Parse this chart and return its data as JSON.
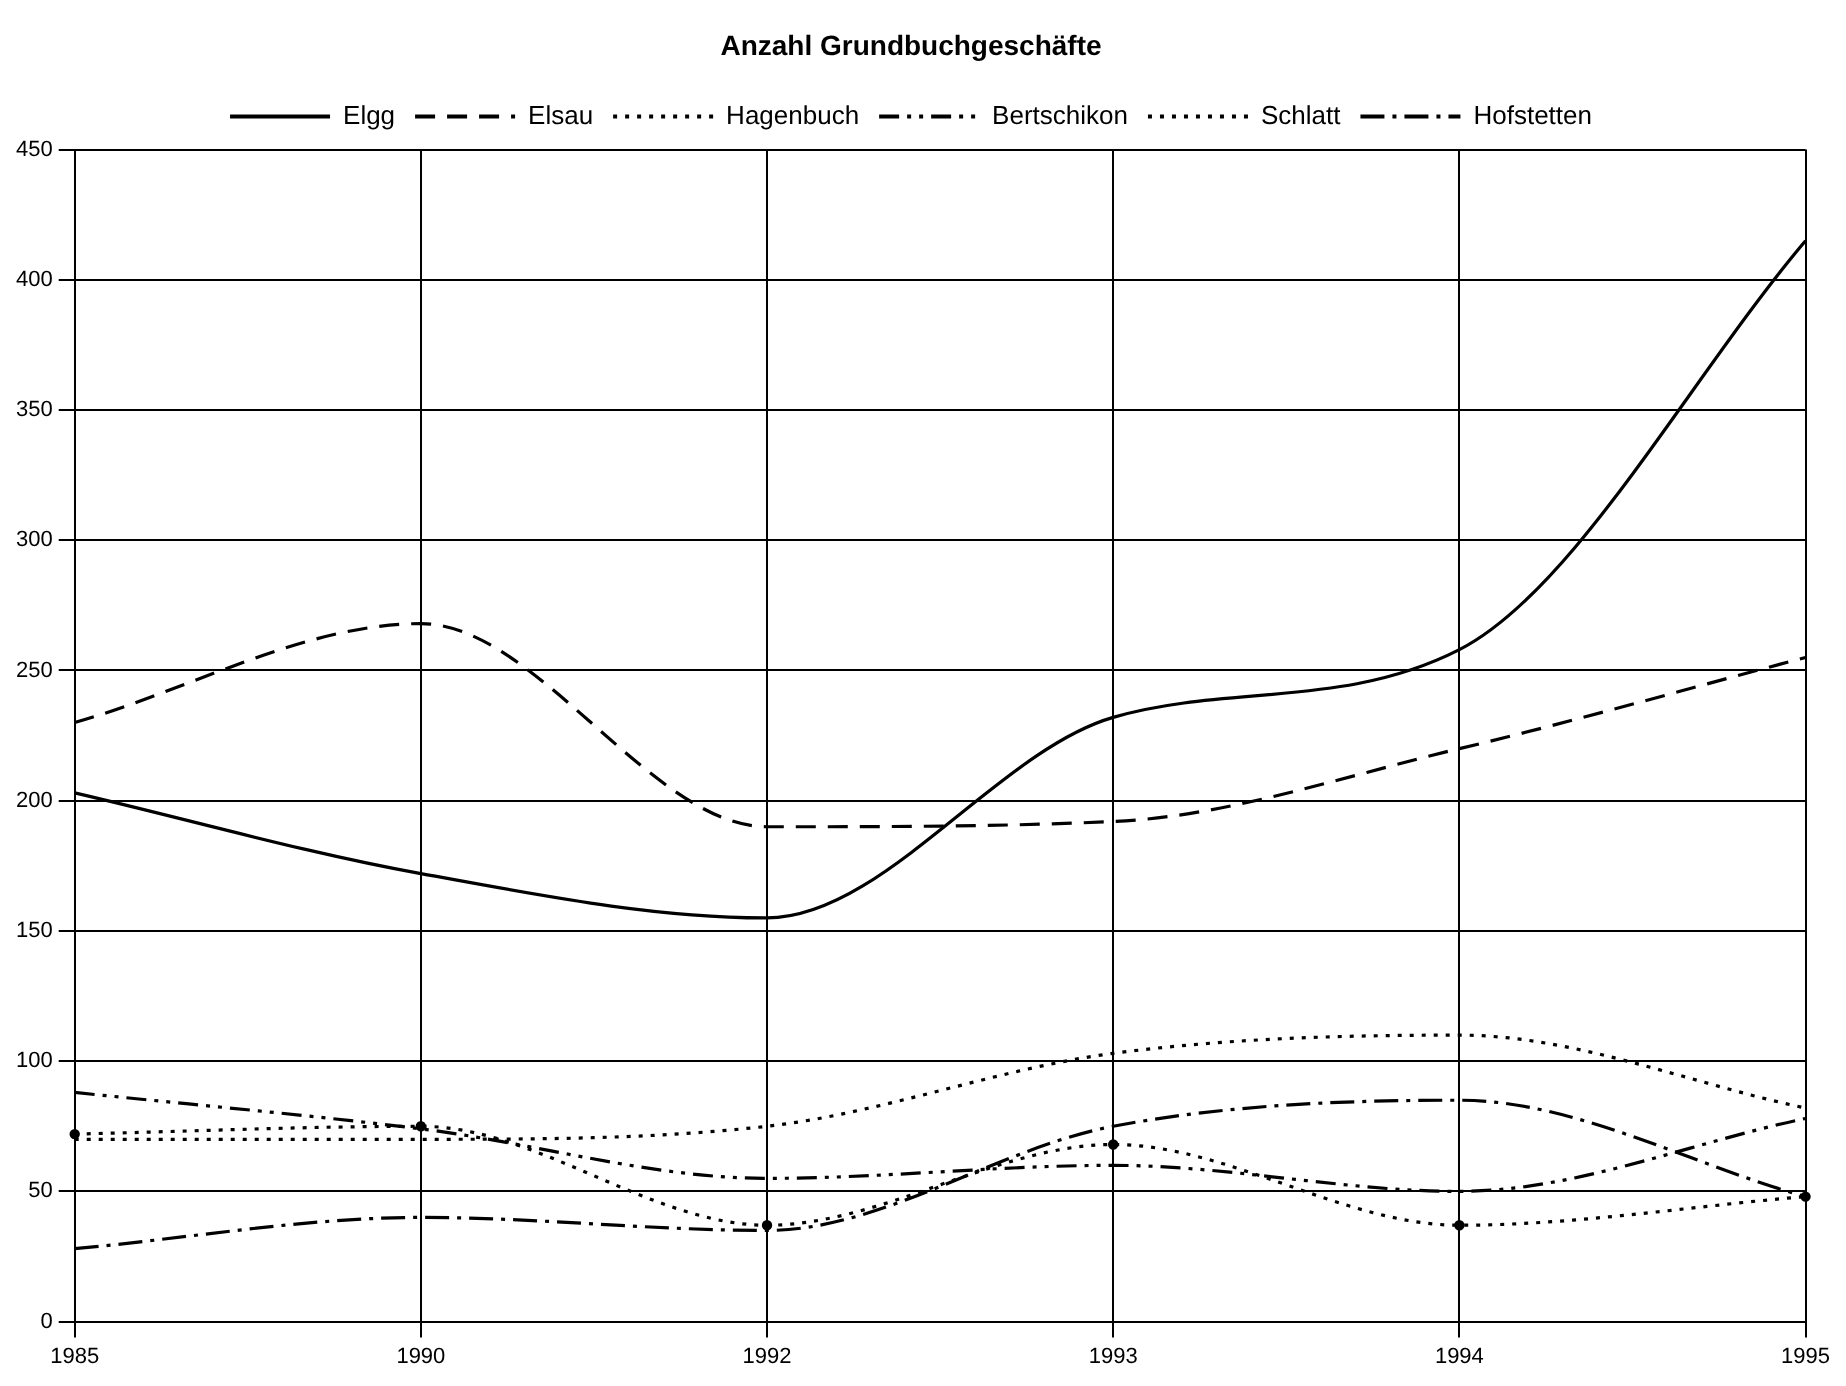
{
  "chart_data": {
    "type": "line",
    "title": "Anzahl Grundbuchgeschäfte",
    "categories": [
      "1985",
      "1990",
      "1992",
      "1993",
      "1994",
      "1995"
    ],
    "series": [
      {
        "name": "Elgg",
        "color": "#000000",
        "line_style": "solid",
        "values": [
          203,
          172,
          155,
          232,
          258,
          415
        ]
      },
      {
        "name": "Elsau",
        "color": "#000000",
        "line_style": "dashed",
        "values": [
          230,
          268,
          190,
          192,
          220,
          255
        ]
      },
      {
        "name": "Hagenbuch",
        "color": "#000000",
        "line_style": "dotted",
        "values": [
          70,
          70,
          75,
          103,
          110,
          82
        ]
      },
      {
        "name": "Bertschikon",
        "color": "#000000",
        "line_style": "dashdotdot",
        "values": [
          88,
          74,
          55,
          60,
          50,
          78
        ]
      },
      {
        "name": "Schlatt",
        "color": "#000000",
        "line_style": "dotted",
        "marker": "circle",
        "values": [
          72,
          75,
          37,
          68,
          37,
          48
        ]
      },
      {
        "name": "Hofstetten",
        "color": "#000000",
        "line_style": "dashdot",
        "values": [
          28,
          40,
          35,
          75,
          85,
          48
        ]
      }
    ],
    "ylim": [
      0,
      450
    ],
    "yticks": [
      0,
      50,
      100,
      150,
      200,
      250,
      300,
      350,
      400,
      450
    ],
    "grid": true,
    "legend": "top",
    "marker": "none"
  }
}
